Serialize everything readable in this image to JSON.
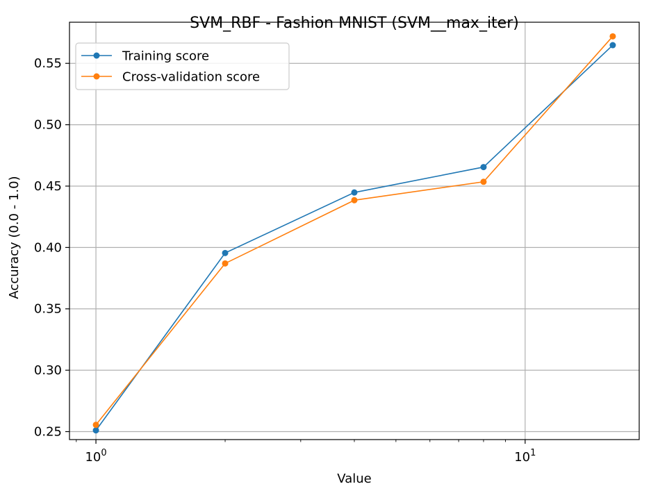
{
  "chart_data": {
    "type": "line",
    "title": "SVM_RBF - Fashion MNIST (SVM__max_iter)",
    "xlabel": "Value",
    "ylabel": "Accuracy (0.0 - 1.0)",
    "xscale": "log",
    "xlim": [
      0.8677,
      18.44
    ],
    "ylim": [
      0.2435,
      0.5835
    ],
    "grid": true,
    "legend_position": "upper-left",
    "x": [
      1,
      2,
      4,
      8,
      16
    ],
    "x_ticks": [
      {
        "value": 1,
        "base": "10",
        "exp": "0"
      },
      {
        "value": 10,
        "base": "10",
        "exp": "1"
      }
    ],
    "y_ticks": [
      {
        "value": 0.25,
        "label": "0.25"
      },
      {
        "value": 0.3,
        "label": "0.30"
      },
      {
        "value": 0.35,
        "label": "0.35"
      },
      {
        "value": 0.4,
        "label": "0.40"
      },
      {
        "value": 0.45,
        "label": "0.45"
      },
      {
        "value": 0.5,
        "label": "0.50"
      },
      {
        "value": 0.55,
        "label": "0.55"
      }
    ],
    "series": [
      {
        "name": "Training score",
        "color": "#1f77b4",
        "values": [
          0.251,
          0.3955,
          0.4448,
          0.4655,
          0.5648
        ]
      },
      {
        "name": "Cross-validation score",
        "color": "#ff7f0e",
        "values": [
          0.2555,
          0.387,
          0.4385,
          0.4535,
          0.572
        ]
      }
    ]
  }
}
